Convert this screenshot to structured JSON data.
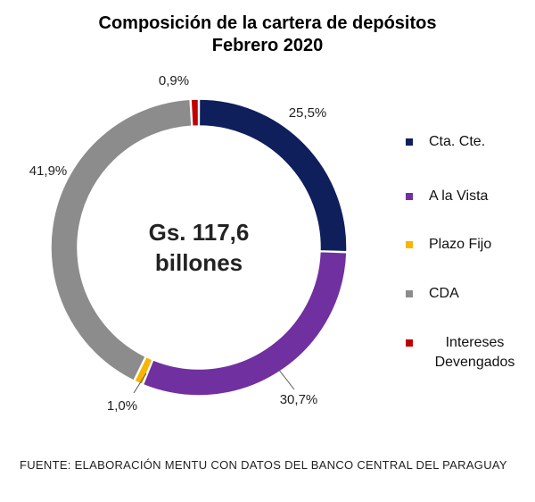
{
  "chart_data": {
    "type": "pie",
    "donut": true,
    "title": "Composición  de la cartera de depósitos",
    "subtitle": "Febrero 2020",
    "center_label_line1": "Gs. 117,6",
    "center_label_line2": "billones",
    "legend_placement": "right",
    "series": [
      {
        "name": "Cta. Cte.",
        "value": 25.5,
        "label": "25,5%",
        "color": "#0f1f5c"
      },
      {
        "name": "A la Vista",
        "value": 30.7,
        "label": "30,7%",
        "color": "#7030a0"
      },
      {
        "name": "Plazo Fijo",
        "value": 1.0,
        "label": "1,0%",
        "color": "#f7b500"
      },
      {
        "name": "CDA",
        "value": 41.9,
        "label": "41,9%",
        "color": "#8c8c8c"
      },
      {
        "name": "Intereses\nDevengados",
        "value": 0.9,
        "label": "0,9%",
        "color": "#c00000"
      }
    ]
  },
  "legend": {
    "items": [
      {
        "label": "Cta. Cte.",
        "color": "#0f1f5c"
      },
      {
        "label": "A la Vista",
        "color": "#7030a0"
      },
      {
        "label": "Plazo Fijo",
        "color": "#f7b500"
      },
      {
        "label": "CDA",
        "color": "#8c8c8c"
      },
      {
        "label": "Intereses\nDevengados",
        "color": "#c00000"
      }
    ]
  },
  "source": "FUENTE: Elaboración MENTU con datos del Banco Central del Paraguay"
}
